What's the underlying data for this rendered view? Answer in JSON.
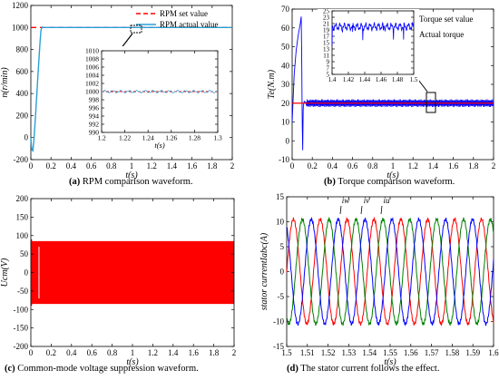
{
  "captions": {
    "a_letter": "(a)",
    "a_text": " RPM comparison waveform.",
    "b_letter": "(b)",
    "b_text": " Torque comparison waveform.",
    "c_letter": "(c)",
    "c_text": " Common-mode voltage suppression waveform.",
    "d_letter": "(d)",
    "d_text": " The stator current follows the effect."
  },
  "colors": {
    "red": "#ff0000",
    "blue": "#0000ff",
    "green": "#008000",
    "cyan": "#2a9fd6"
  },
  "chart_data": [
    {
      "id": "a",
      "type": "line",
      "title": "",
      "xlabel": "t(s)",
      "ylabel": "n(r/min)",
      "xlim": [
        0,
        2
      ],
      "ylim": [
        -200,
        1200
      ],
      "xticks": [
        "0",
        "0.2",
        "0.4",
        "0.6",
        "0.8",
        "1",
        "1.2",
        "1.4",
        "1.6",
        "1.8",
        "2"
      ],
      "yticks": [
        "-200",
        "0",
        "200",
        "400",
        "600",
        "800",
        "1000",
        "1200"
      ],
      "legend_position": "top-right",
      "series": [
        {
          "name": "RPM set value",
          "style": "dashed",
          "color": "#ff0000",
          "x": [
            0,
            2
          ],
          "y": [
            1000,
            1000
          ]
        },
        {
          "name": "RPM actual value",
          "color": "#2a9fd6",
          "x": [
            0,
            0.005,
            0.01,
            0.02,
            0.03,
            0.05,
            0.07,
            0.09,
            0.1,
            0.11,
            0.12,
            2
          ],
          "y": [
            0,
            -70,
            -110,
            -120,
            -30,
            250,
            560,
            850,
            970,
            1005,
            1000,
            1000
          ]
        }
      ],
      "inset": {
        "xlabel": "t(s)",
        "xlim": [
          1.2,
          1.3
        ],
        "ylim": [
          990,
          1010
        ],
        "xticks": [
          "1.2",
          "1.22",
          "1.24",
          "1.26",
          "1.28",
          "1.3"
        ],
        "yticks": [
          "990",
          "992",
          "994",
          "996",
          "998",
          "1000",
          "1002",
          "1004",
          "1006",
          "1008",
          "1010"
        ],
        "series": [
          {
            "name": "RPM set value",
            "color": "#ff0000",
            "y_const": 1000
          },
          {
            "name": "RPM actual value",
            "color": "#2a9fd6",
            "y_mean": 1000,
            "ripple": 0.3
          }
        ]
      }
    },
    {
      "id": "b",
      "type": "line",
      "title": "",
      "xlabel": "t(s)",
      "ylabel": "Te(N.m)",
      "xlim": [
        0,
        2
      ],
      "ylim": [
        -10,
        70
      ],
      "xticks": [
        "0",
        "0.2",
        "0.4",
        "0.6",
        "0.8",
        "1",
        "1.2",
        "1.4",
        "1.6",
        "1.8",
        "2"
      ],
      "yticks": [
        "-10",
        "0",
        "10",
        "20",
        "30",
        "40",
        "50",
        "60",
        "70"
      ],
      "legend_position": "top-right",
      "series": [
        {
          "name": "Torque  set value",
          "color": "#ff0000",
          "x": [
            0,
            2
          ],
          "y": [
            20,
            20
          ]
        },
        {
          "name": "Actual torque",
          "color": "#0000ff",
          "x": [
            0,
            0.02,
            0.04,
            0.06,
            0.08,
            0.09,
            0.095,
            0.1,
            0.105,
            0.11,
            0.12,
            0.14,
            2
          ],
          "y": [
            10,
            35,
            48,
            56,
            62,
            66,
            45,
            10,
            -5,
            18,
            21,
            20,
            20
          ],
          "ripple": 1.5
        }
      ],
      "inset": {
        "xlabel": "",
        "xlim": [
          1.4,
          1.5
        ],
        "ylim": [
          5,
          25
        ],
        "xticks": [
          "1.4",
          "1.42",
          "1.44",
          "1.46",
          "1.48",
          "1.5"
        ],
        "yticks": [
          "5",
          "7",
          "9",
          "11",
          "13",
          "15",
          "17",
          "19",
          "21",
          "23",
          "25"
        ],
        "series": [
          {
            "name": "Actual torque",
            "color": "#0000ff",
            "y_mean": 20,
            "ripple": 1.2
          }
        ]
      }
    },
    {
      "id": "c",
      "type": "line",
      "title": "",
      "xlabel": "t(s)",
      "ylabel": "Ucm(V)",
      "xlim": [
        0,
        2
      ],
      "ylim": [
        -200,
        200
      ],
      "xticks": [
        "0",
        "0.2",
        "0.4",
        "0.6",
        "0.8",
        "1",
        "1.2",
        "1.4",
        "1.6",
        "1.8",
        "2"
      ],
      "yticks": [
        "-200",
        "-150",
        "-100",
        "-50",
        "0",
        "50",
        "100",
        "150",
        "200"
      ],
      "series": [
        {
          "name": "Ucm",
          "color": "#ff0000",
          "band": [
            -85,
            85
          ]
        }
      ]
    },
    {
      "id": "d",
      "type": "line",
      "title": "",
      "xlabel": "t(s)",
      "ylabel": "stator currentIabc(A)",
      "xlim": [
        1.5,
        1.6
      ],
      "ylim": [
        -15,
        15
      ],
      "xticks": [
        "1.5",
        "1.51",
        "1.52",
        "1.53",
        "1.54",
        "1.55",
        "1.56",
        "1.57",
        "1.58",
        "1.59",
        "1.6"
      ],
      "yticks": [
        "-15",
        "-10",
        "-5",
        "0",
        "5",
        "10",
        "15"
      ],
      "series": [
        {
          "name": "iu",
          "label": "iu",
          "color": "#ff0000",
          "amplitude": 10.5,
          "frequency_hz": 77,
          "phase_deg": 0
        },
        {
          "name": "iv",
          "label": "iv",
          "color": "#008000",
          "amplitude": 10.5,
          "frequency_hz": 77,
          "phase_deg": -120
        },
        {
          "name": "iw",
          "label": "iw",
          "color": "#0000ff",
          "amplitude": 10.5,
          "frequency_hz": 77,
          "phase_deg": 120
        }
      ]
    }
  ]
}
